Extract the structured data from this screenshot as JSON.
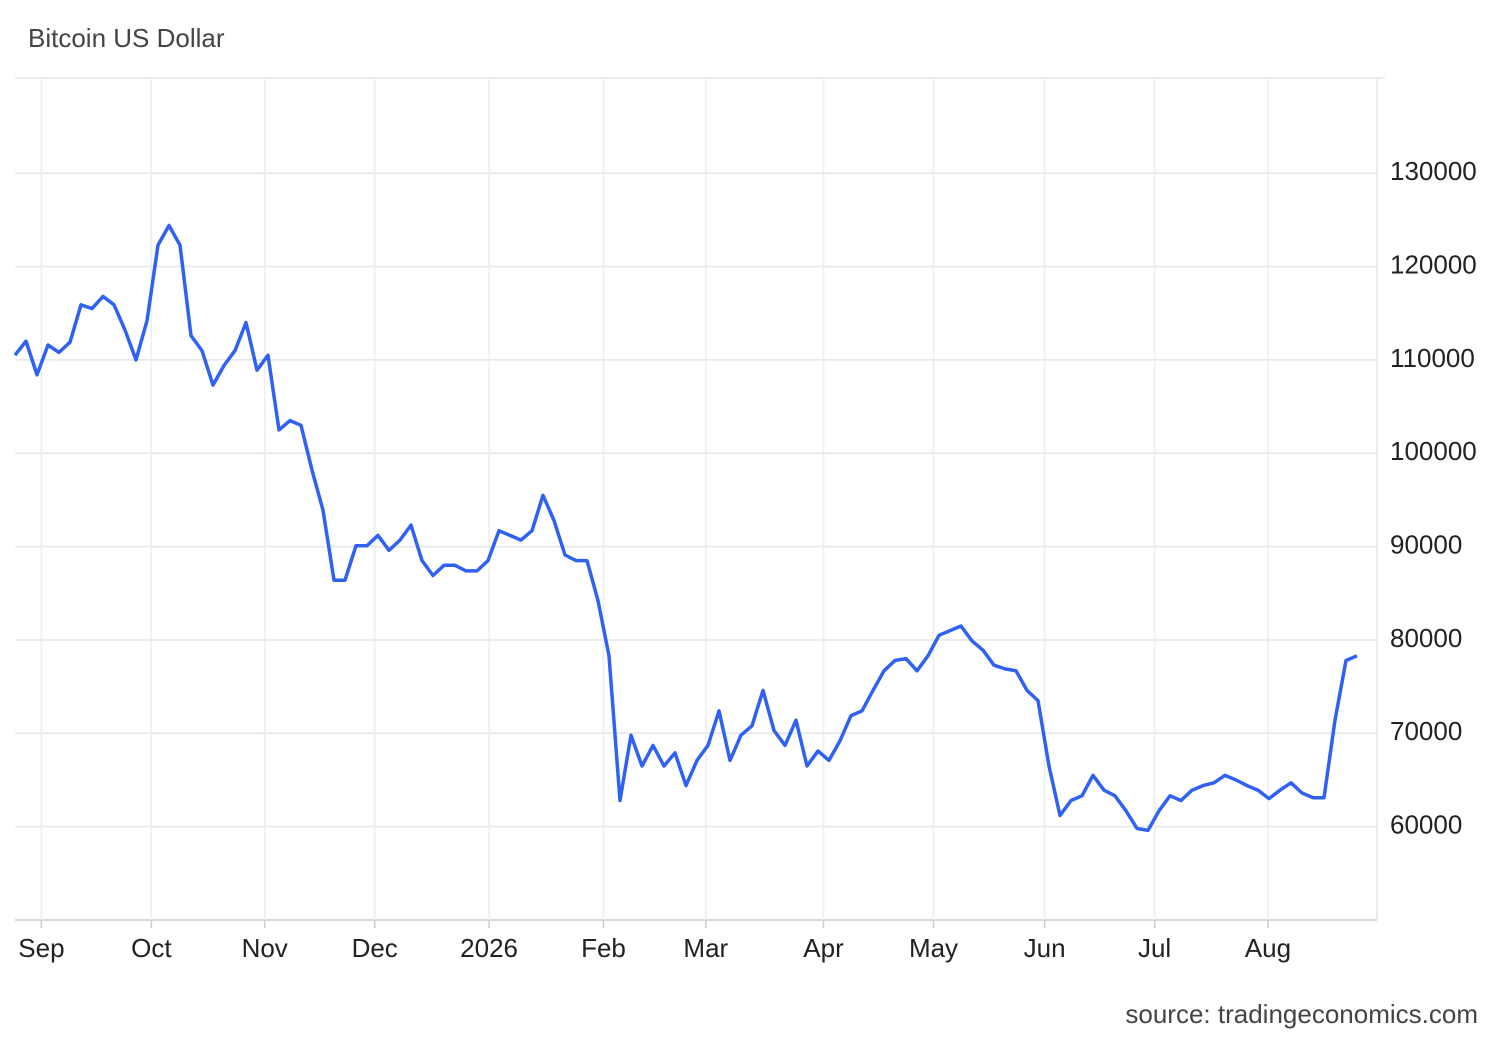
{
  "chart_data": {
    "type": "line",
    "title": "Bitcoin US Dollar",
    "source": "source: tradingeconomics.com",
    "series": [
      {
        "name": "Bitcoin US Dollar",
        "color": "#2f62f2",
        "values": [
          110500,
          112000,
          108400,
          111600,
          110800,
          111900,
          115900,
          115500,
          116800,
          115900,
          113200,
          110000,
          114200,
          122300,
          124400,
          122300,
          112600,
          111000,
          107300,
          109400,
          111000,
          114000,
          108900,
          110500,
          102500,
          103500,
          103000,
          98200,
          93900,
          86400,
          86400,
          90100,
          90100,
          91200,
          89600,
          90700,
          92300,
          88500,
          86900,
          88000,
          88000,
          87400,
          87400,
          88500,
          91700,
          91200,
          90700,
          91700,
          95500,
          92800,
          89100,
          88500,
          88500,
          84200,
          78300,
          62800,
          69800,
          66500,
          68700,
          66500,
          67900,
          64400,
          67100,
          68700,
          72400,
          67100,
          69800,
          70800,
          74600,
          70300,
          68700,
          71400,
          66500,
          68100,
          67100,
          69200,
          71900,
          72400,
          74600,
          76700,
          77800,
          78000,
          76700,
          78300,
          80500,
          81000,
          81500,
          79900,
          78900,
          77300,
          76900,
          76700,
          74600,
          73500,
          66500,
          61200,
          62800,
          63300,
          65500,
          63900,
          63300,
          61700,
          59800,
          59600,
          61700,
          63300,
          62800,
          63900,
          64400,
          64700,
          65500,
          65000,
          64400,
          63900,
          63000,
          63900,
          64700,
          63600,
          63100,
          63100,
          71400,
          77800,
          78300
        ]
      }
    ],
    "xlim": [
      0,
      124
    ],
    "xticks": [
      {
        "value": 2.4,
        "label": "Sep"
      },
      {
        "value": 12.4,
        "label": "Oct"
      },
      {
        "value": 22.7,
        "label": "Nov"
      },
      {
        "value": 32.7,
        "label": "Dec"
      },
      {
        "value": 43.1,
        "label": "2026"
      },
      {
        "value": 53.5,
        "label": "Feb"
      },
      {
        "value": 62.8,
        "label": "Mar"
      },
      {
        "value": 73.5,
        "label": "Apr"
      },
      {
        "value": 83.5,
        "label": "May"
      },
      {
        "value": 93.6,
        "label": "Jun"
      },
      {
        "value": 103.6,
        "label": "Jul"
      },
      {
        "value": 113.9,
        "label": "Aug"
      }
    ],
    "ylim": [
      50000,
      140200
    ],
    "yticks": [
      60000,
      70000,
      80000,
      90000,
      100000,
      110000,
      120000,
      130000
    ],
    "grid": true
  }
}
